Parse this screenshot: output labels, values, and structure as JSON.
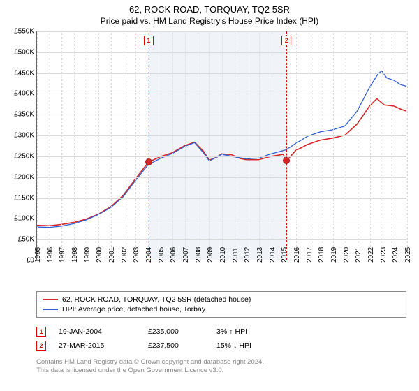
{
  "title": "62, ROCK ROAD, TORQUAY, TQ2 5SR",
  "subtitle": "Price paid vs. HM Land Registry's House Price Index (HPI)",
  "chart": {
    "type": "line",
    "x_start_year": 1995,
    "x_end_year": 2025,
    "x_tick_years": [
      1995,
      1996,
      1997,
      1998,
      1999,
      2000,
      2001,
      2002,
      2003,
      2004,
      2005,
      2006,
      2007,
      2008,
      2009,
      2010,
      2011,
      2012,
      2013,
      2014,
      2015,
      2016,
      2017,
      2018,
      2019,
      2020,
      2021,
      2022,
      2023,
      2024,
      2025
    ],
    "y_min": 0,
    "y_max": 550,
    "y_ticks": [
      0,
      50,
      100,
      150,
      200,
      250,
      300,
      350,
      400,
      450,
      500,
      550
    ],
    "y_tick_labels": [
      "£0",
      "£50K",
      "£100K",
      "£150K",
      "£200K",
      "£250K",
      "£300K",
      "£350K",
      "£400K",
      "£450K",
      "£500K",
      "£550K"
    ],
    "hpi_band": {
      "start_year": 2004.05,
      "end_year": 2015.23
    },
    "grid_color": "#d9d9d9",
    "series": [
      {
        "id": "property",
        "label": "62, ROCK ROAD, TORQUAY, TQ2 5SR (detached house)",
        "color": "#d62728",
        "width": 1.6,
        "points": [
          [
            1995.0,
            83
          ],
          [
            1996.0,
            82
          ],
          [
            1997.0,
            85
          ],
          [
            1998.0,
            90
          ],
          [
            1999.0,
            98
          ],
          [
            2000.0,
            110
          ],
          [
            2001.0,
            128
          ],
          [
            2002.0,
            155
          ],
          [
            2003.0,
            195
          ],
          [
            2004.0,
            233
          ],
          [
            2004.05,
            235
          ],
          [
            2005.0,
            248
          ],
          [
            2006.0,
            258
          ],
          [
            2007.0,
            275
          ],
          [
            2007.8,
            283
          ],
          [
            2008.5,
            262
          ],
          [
            2009.0,
            240
          ],
          [
            2009.6,
            247
          ],
          [
            2010.0,
            255
          ],
          [
            2010.8,
            253
          ],
          [
            2011.5,
            244
          ],
          [
            2012.0,
            241
          ],
          [
            2013.0,
            241
          ],
          [
            2014.0,
            249
          ],
          [
            2015.0,
            254
          ],
          [
            2015.23,
            237.5
          ],
          [
            2016.0,
            263
          ],
          [
            2017.0,
            278
          ],
          [
            2018.0,
            288
          ],
          [
            2019.0,
            293
          ],
          [
            2020.0,
            300
          ],
          [
            2021.0,
            327
          ],
          [
            2022.0,
            370
          ],
          [
            2022.6,
            388
          ],
          [
            2023.2,
            373
          ],
          [
            2024.0,
            370
          ],
          [
            2024.6,
            362
          ],
          [
            2025.0,
            358
          ]
        ]
      },
      {
        "id": "hpi",
        "label": "HPI: Average price, detached house, Torbay",
        "color": "#2f5fd0",
        "width": 1.3,
        "points": [
          [
            1995.0,
            79
          ],
          [
            1996.0,
            78
          ],
          [
            1997.0,
            81
          ],
          [
            1998.0,
            87
          ],
          [
            1999.0,
            96
          ],
          [
            2000.0,
            109
          ],
          [
            2001.0,
            126
          ],
          [
            2002.0,
            152
          ],
          [
            2003.0,
            191
          ],
          [
            2004.0,
            228
          ],
          [
            2005.0,
            244
          ],
          [
            2006.0,
            256
          ],
          [
            2007.0,
            273
          ],
          [
            2007.8,
            282
          ],
          [
            2008.5,
            258
          ],
          [
            2009.0,
            238
          ],
          [
            2010.0,
            254
          ],
          [
            2011.0,
            248
          ],
          [
            2012.0,
            243
          ],
          [
            2013.0,
            245
          ],
          [
            2014.0,
            255
          ],
          [
            2015.0,
            263
          ],
          [
            2015.23,
            265
          ],
          [
            2016.0,
            280
          ],
          [
            2017.0,
            298
          ],
          [
            2018.0,
            308
          ],
          [
            2019.0,
            313
          ],
          [
            2020.0,
            322
          ],
          [
            2021.0,
            358
          ],
          [
            2022.0,
            415
          ],
          [
            2022.7,
            448
          ],
          [
            2023.0,
            455
          ],
          [
            2023.4,
            438
          ],
          [
            2024.0,
            432
          ],
          [
            2024.5,
            422
          ],
          [
            2025.0,
            418
          ]
        ]
      }
    ],
    "sales": [
      {
        "num": "1",
        "year": 2004.05,
        "date": "19-JAN-2004",
        "price": "£235,000",
        "delta_pct": "3%",
        "delta_dir": "up",
        "delta_label": "HPI",
        "price_val": 235
      },
      {
        "num": "2",
        "year": 2015.23,
        "date": "27-MAR-2015",
        "price": "£237,500",
        "delta_pct": "15%",
        "delta_dir": "down",
        "delta_label": "HPI",
        "price_val": 237.5
      }
    ]
  },
  "legend": {
    "property": "62, ROCK ROAD, TORQUAY, TQ2 5SR (detached house)",
    "hpi": "HPI: Average price, detached house, Torbay"
  },
  "footer_line1": "Contains HM Land Registry data © Crown copyright and database right 2024.",
  "footer_line2": "This data is licensed under the Open Government Licence v3.0."
}
